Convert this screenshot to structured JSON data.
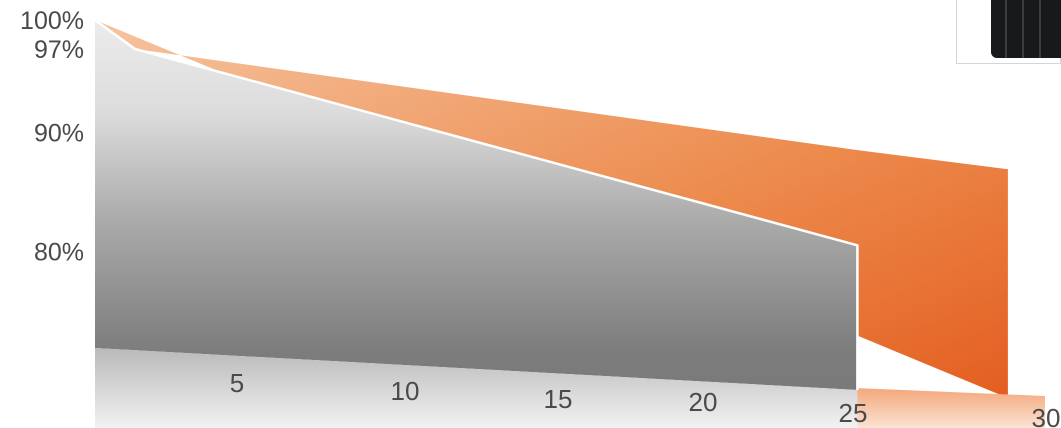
{
  "chart_data": {
    "type": "area",
    "title": "",
    "xlabel": "",
    "ylabel": "",
    "y_tick_labels": [
      "100%",
      "97%",
      "90%",
      "80%"
    ],
    "x_tick_labels": [
      "5",
      "10",
      "15",
      "20",
      "25",
      "30"
    ],
    "series": [
      {
        "x": [
          0,
          1,
          25,
          30
        ],
        "values": [
          100,
          97,
          88.5,
          86.9
        ],
        "color": "#e8621f"
      },
      {
        "x": [
          0,
          1,
          25
        ],
        "values": [
          100,
          97,
          80.5
        ],
        "color": "#8a8a8a"
      }
    ]
  },
  "decorations": {
    "solar_panel_icon": "solar-panel-icon"
  }
}
